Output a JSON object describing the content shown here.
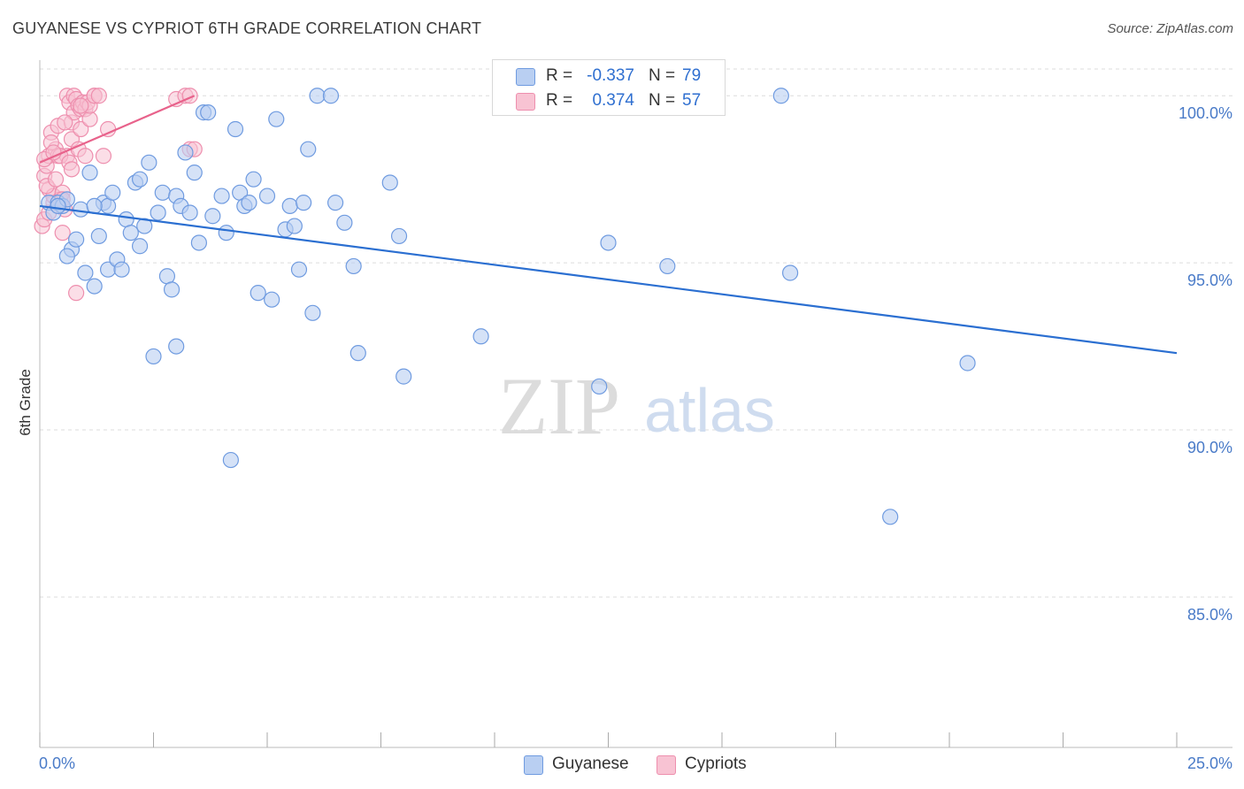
{
  "title": "GUYANESE VS CYPRIOT 6TH GRADE CORRELATION CHART",
  "source": "Source: ZipAtlas.com",
  "watermark": {
    "zip": "ZIP",
    "atlas": "atlas"
  },
  "legend": {
    "rows": [
      {
        "r_label": "R =",
        "r_value": "-0.337",
        "n_label": "N =",
        "n_value": "79"
      },
      {
        "r_label": "R =",
        "r_value": "0.374",
        "n_label": "N =",
        "n_value": "57"
      }
    ]
  },
  "bottom_legend": {
    "guyanese": "Guyanese",
    "cypriots": "Cypriots"
  },
  "colors": {
    "blue_fill": "#b9cff2",
    "blue_stroke": "#6f9be0",
    "blue_line": "#2b6fd1",
    "pink_fill": "#f8c3d3",
    "pink_stroke": "#ee8fae",
    "pink_line": "#e8628b",
    "grid": "#dcdcdc",
    "axis_text": "#4a7bc8"
  },
  "chart_data": {
    "type": "scatter",
    "title": "GUYANESE VS CYPRIOT 6TH GRADE CORRELATION CHART",
    "xlabel": "",
    "ylabel": "6th Grade",
    "xlim": [
      0,
      25
    ],
    "ylim": [
      80.5,
      100.8
    ],
    "x_tick_labels": [
      "0.0%",
      "25.0%"
    ],
    "y_ticks": [
      85,
      90,
      95,
      100
    ],
    "y_tick_labels": [
      "85.0%",
      "90.0%",
      "95.0%",
      "100.0%"
    ],
    "grid": true,
    "series": [
      {
        "name": "Guyanese",
        "R": -0.337,
        "N": 79,
        "trend": {
          "x": [
            0,
            25
          ],
          "y": [
            96.7,
            92.3
          ]
        },
        "points": [
          [
            0.2,
            96.8
          ],
          [
            0.3,
            96.5
          ],
          [
            0.4,
            96.8
          ],
          [
            0.5,
            96.7
          ],
          [
            0.6,
            96.9
          ],
          [
            0.7,
            95.4
          ],
          [
            0.6,
            95.2
          ],
          [
            0.8,
            95.7
          ],
          [
            0.9,
            96.6
          ],
          [
            1.0,
            94.7
          ],
          [
            1.1,
            97.7
          ],
          [
            1.2,
            94.3
          ],
          [
            1.3,
            95.8
          ],
          [
            1.4,
            96.8
          ],
          [
            1.5,
            94.8
          ],
          [
            1.5,
            96.7
          ],
          [
            1.6,
            97.1
          ],
          [
            1.7,
            95.1
          ],
          [
            1.8,
            94.8
          ],
          [
            1.9,
            96.3
          ],
          [
            2.0,
            95.9
          ],
          [
            2.1,
            97.4
          ],
          [
            2.2,
            95.5
          ],
          [
            2.2,
            97.5
          ],
          [
            2.3,
            96.1
          ],
          [
            2.4,
            98.0
          ],
          [
            2.5,
            92.2
          ],
          [
            2.6,
            96.5
          ],
          [
            2.7,
            97.1
          ],
          [
            2.8,
            94.6
          ],
          [
            2.9,
            94.2
          ],
          [
            3.0,
            92.5
          ],
          [
            3.0,
            97.0
          ],
          [
            3.1,
            96.7
          ],
          [
            3.2,
            98.3
          ],
          [
            3.3,
            96.5
          ],
          [
            3.4,
            97.7
          ],
          [
            3.5,
            95.6
          ],
          [
            3.6,
            99.5
          ],
          [
            3.7,
            99.5
          ],
          [
            3.8,
            96.4
          ],
          [
            4.0,
            97.0
          ],
          [
            4.1,
            95.9
          ],
          [
            4.2,
            89.1
          ],
          [
            4.3,
            99.0
          ],
          [
            4.4,
            97.1
          ],
          [
            4.5,
            96.7
          ],
          [
            4.6,
            96.8
          ],
          [
            4.7,
            97.5
          ],
          [
            4.8,
            94.1
          ],
          [
            5.0,
            97.0
          ],
          [
            5.1,
            93.9
          ],
          [
            5.2,
            99.3
          ],
          [
            5.4,
            96.0
          ],
          [
            5.5,
            96.7
          ],
          [
            5.6,
            96.1
          ],
          [
            5.7,
            94.8
          ],
          [
            5.8,
            96.8
          ],
          [
            5.9,
            98.4
          ],
          [
            6.0,
            93.5
          ],
          [
            6.1,
            100.0
          ],
          [
            6.4,
            100.0
          ],
          [
            6.5,
            96.8
          ],
          [
            6.7,
            96.2
          ],
          [
            6.9,
            94.9
          ],
          [
            7.0,
            92.3
          ],
          [
            7.7,
            97.4
          ],
          [
            7.9,
            95.8
          ],
          [
            8.0,
            91.6
          ],
          [
            9.7,
            92.8
          ],
          [
            12.3,
            91.3
          ],
          [
            12.5,
            95.6
          ],
          [
            13.8,
            94.9
          ],
          [
            16.3,
            100.0
          ],
          [
            16.5,
            94.7
          ],
          [
            18.7,
            87.4
          ],
          [
            20.4,
            92.0
          ],
          [
            0.4,
            96.7
          ],
          [
            1.2,
            96.7
          ]
        ]
      },
      {
        "name": "Cypriots",
        "R": 0.374,
        "N": 57,
        "trend": {
          "x": [
            0,
            3.4
          ],
          "y": [
            98.0,
            100.0
          ]
        },
        "points": [
          [
            0.05,
            96.1
          ],
          [
            0.1,
            96.3
          ],
          [
            0.1,
            97.6
          ],
          [
            0.15,
            97.9
          ],
          [
            0.2,
            98.2
          ],
          [
            0.2,
            97.2
          ],
          [
            0.25,
            98.9
          ],
          [
            0.3,
            96.8
          ],
          [
            0.3,
            97.0
          ],
          [
            0.35,
            98.4
          ],
          [
            0.4,
            98.2
          ],
          [
            0.4,
            99.1
          ],
          [
            0.45,
            96.9
          ],
          [
            0.5,
            95.9
          ],
          [
            0.5,
            97.1
          ],
          [
            0.55,
            96.6
          ],
          [
            0.6,
            100.0
          ],
          [
            0.6,
            98.2
          ],
          [
            0.65,
            99.8
          ],
          [
            0.7,
            99.2
          ],
          [
            0.7,
            98.7
          ],
          [
            0.75,
            100.0
          ],
          [
            0.75,
            99.5
          ],
          [
            0.8,
            99.9
          ],
          [
            0.8,
            94.1
          ],
          [
            0.85,
            99.7
          ],
          [
            0.85,
            98.4
          ],
          [
            0.9,
            99.6
          ],
          [
            0.9,
            99.0
          ],
          [
            0.95,
            99.8
          ],
          [
            1.0,
            99.6
          ],
          [
            1.0,
            98.2
          ],
          [
            1.05,
            99.8
          ],
          [
            1.1,
            99.3
          ],
          [
            1.1,
            99.7
          ],
          [
            1.2,
            100.0
          ],
          [
            1.2,
            100.0
          ],
          [
            1.3,
            100.0
          ],
          [
            1.4,
            98.2
          ],
          [
            1.5,
            99.0
          ],
          [
            3.0,
            99.9
          ],
          [
            3.2,
            100.0
          ],
          [
            3.3,
            100.0
          ],
          [
            3.3,
            98.4
          ],
          [
            3.4,
            98.4
          ],
          [
            0.15,
            97.3
          ],
          [
            0.25,
            98.6
          ],
          [
            0.35,
            97.5
          ],
          [
            0.45,
            98.2
          ],
          [
            0.55,
            99.2
          ],
          [
            0.65,
            98.0
          ],
          [
            0.1,
            98.1
          ],
          [
            0.2,
            96.5
          ],
          [
            0.3,
            98.3
          ],
          [
            0.5,
            96.9
          ],
          [
            0.7,
            97.8
          ],
          [
            0.9,
            99.7
          ]
        ]
      }
    ]
  }
}
